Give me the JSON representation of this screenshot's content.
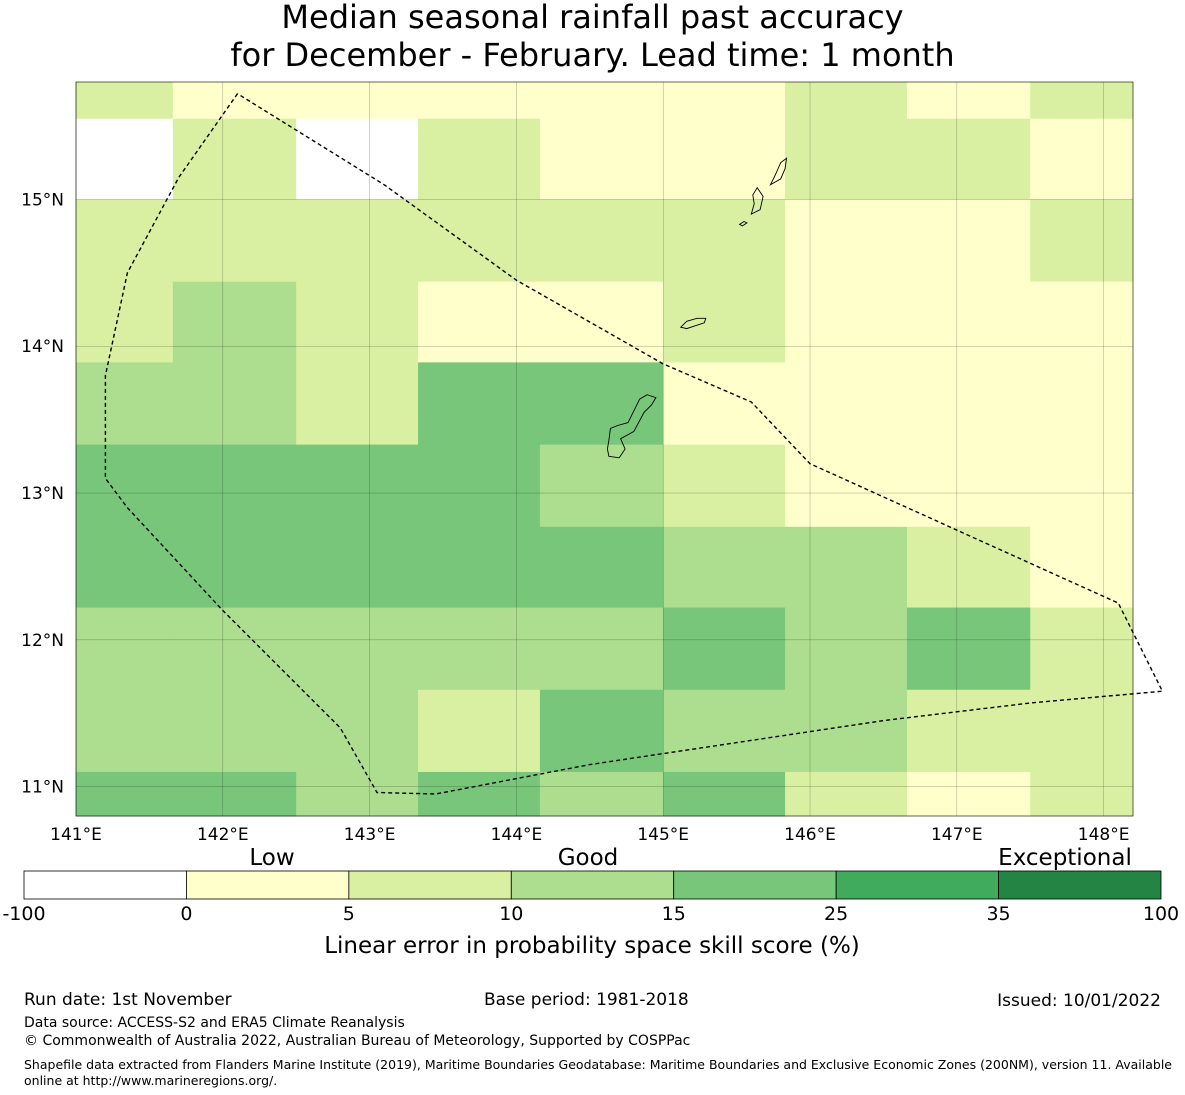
{
  "title": {
    "line1": "Median seasonal rainfall past accuracy",
    "line2": "for December - February. Lead time: 1 month"
  },
  "map": {
    "lon_range": [
      141.0,
      148.2
    ],
    "lat_range": [
      10.8,
      15.8
    ],
    "lon_ticks": [
      141,
      142,
      143,
      144,
      145,
      146,
      147,
      148
    ],
    "lat_ticks": [
      11,
      12,
      13,
      14,
      15
    ],
    "lon_tick_labels": [
      "141°E",
      "142°E",
      "143°E",
      "144°E",
      "145°E",
      "146°E",
      "147°E",
      "148°E"
    ],
    "lat_tick_labels": [
      "11°N",
      "12°N",
      "13°N",
      "14°N",
      "15°N"
    ],
    "grid_lon_edges": [
      141.0,
      141.66,
      142.5,
      143.33,
      144.16,
      145.0,
      145.83,
      146.66,
      147.5,
      148.2
    ],
    "grid_lat_edges": [
      15.8,
      15.55,
      15.0,
      14.44,
      13.89,
      13.33,
      12.77,
      12.22,
      11.66,
      11.1,
      10.8
    ],
    "skill_cells": [
      [
        2,
        1,
        1,
        1,
        1,
        1,
        2,
        1,
        2
      ],
      [
        0,
        2,
        0,
        2,
        1,
        1,
        2,
        2,
        1
      ],
      [
        2,
        2,
        2,
        2,
        2,
        2,
        1,
        1,
        2
      ],
      [
        2,
        3,
        2,
        1,
        1,
        2,
        1,
        1,
        1
      ],
      [
        3,
        3,
        2,
        4,
        4,
        1,
        1,
        1,
        1
      ],
      [
        4,
        4,
        4,
        4,
        3,
        2,
        1,
        1,
        1
      ],
      [
        4,
        4,
        4,
        4,
        4,
        3,
        3,
        2,
        1
      ],
      [
        3,
        3,
        3,
        3,
        3,
        4,
        3,
        4,
        2
      ],
      [
        3,
        3,
        3,
        2,
        4,
        3,
        3,
        2,
        2
      ],
      [
        4,
        4,
        3,
        4,
        3,
        4,
        2,
        1,
        2
      ]
    ],
    "eez_boundary": [
      [
        142.1,
        15.72
      ],
      [
        141.7,
        15.15
      ],
      [
        141.35,
        14.5
      ],
      [
        141.2,
        13.8
      ],
      [
        141.2,
        13.1
      ],
      [
        141.35,
        12.9
      ],
      [
        142.0,
        12.2
      ],
      [
        142.8,
        11.4
      ],
      [
        143.05,
        10.96
      ],
      [
        143.45,
        10.95
      ],
      [
        144.5,
        11.15
      ],
      [
        145.5,
        11.3
      ],
      [
        146.5,
        11.45
      ],
      [
        147.5,
        11.57
      ],
      [
        148.4,
        11.65
      ],
      [
        148.1,
        12.25
      ],
      [
        146.0,
        13.2
      ],
      [
        145.6,
        13.62
      ],
      [
        145.0,
        13.88
      ],
      [
        144.0,
        14.45
      ],
      [
        143.1,
        15.1
      ],
      [
        142.1,
        15.72
      ]
    ],
    "islands": [
      [
        [
          144.63,
          13.25
        ],
        [
          144.7,
          13.24
        ],
        [
          144.74,
          13.3
        ],
        [
          144.71,
          13.37
        ],
        [
          144.8,
          13.42
        ],
        [
          144.87,
          13.55
        ],
        [
          144.92,
          13.6
        ],
        [
          144.95,
          13.65
        ],
        [
          144.89,
          13.67
        ],
        [
          144.84,
          13.64
        ],
        [
          144.81,
          13.58
        ],
        [
          144.76,
          13.48
        ],
        [
          144.69,
          13.46
        ],
        [
          144.64,
          13.44
        ],
        [
          144.63,
          13.36
        ],
        [
          144.62,
          13.3
        ],
        [
          144.63,
          13.25
        ]
      ],
      [
        [
          145.12,
          14.13
        ],
        [
          145.16,
          14.17
        ],
        [
          145.23,
          14.19
        ],
        [
          145.29,
          14.19
        ],
        [
          145.28,
          14.16
        ],
        [
          145.22,
          14.14
        ],
        [
          145.16,
          14.12
        ],
        [
          145.12,
          14.13
        ]
      ],
      [
        [
          145.6,
          14.9
        ],
        [
          145.66,
          14.93
        ],
        [
          145.68,
          15.02
        ],
        [
          145.64,
          15.08
        ],
        [
          145.61,
          15.03
        ],
        [
          145.62,
          14.97
        ],
        [
          145.6,
          14.9
        ]
      ],
      [
        [
          145.52,
          14.83
        ],
        [
          145.55,
          14.85
        ],
        [
          145.57,
          14.84
        ],
        [
          145.54,
          14.82
        ],
        [
          145.52,
          14.83
        ]
      ],
      [
        [
          145.73,
          15.1
        ],
        [
          145.76,
          15.16
        ],
        [
          145.8,
          15.25
        ],
        [
          145.84,
          15.28
        ],
        [
          145.83,
          15.21
        ],
        [
          145.8,
          15.14
        ],
        [
          145.73,
          15.1
        ]
      ]
    ]
  },
  "colorbar": {
    "top_labels": [
      "Low",
      "Good",
      "Exceptional"
    ],
    "ticks": [
      "-100",
      "0",
      "5",
      "10",
      "15",
      "25",
      "35",
      "100"
    ],
    "colors": [
      "#ffffff",
      "#ffffcc",
      "#d9f0a3",
      "#addd8e",
      "#78c679",
      "#41ab5d",
      "#238443"
    ],
    "label": "Linear error in probability space skill score (%)"
  },
  "footer": {
    "run_date": "Run date: 1st November",
    "base_period": "Base period: 1981-2018",
    "issued": "Issued: 10/01/2022",
    "data_source": "Data source: ACCESS-S2 and ERA5 Climate Reanalysis",
    "copyright": "© Commonwealth of Australia 2022, Australian Bureau of Meteorology, Supported by COSPPac",
    "shapefile_note": "Shapefile data extracted from Flanders Marine Institute (2019), Maritime Boundaries Geodatabase: Maritime Boundaries and Exclusive Economic Zones (200NM), version 11. Available online at http://www.marineregions.org/."
  }
}
